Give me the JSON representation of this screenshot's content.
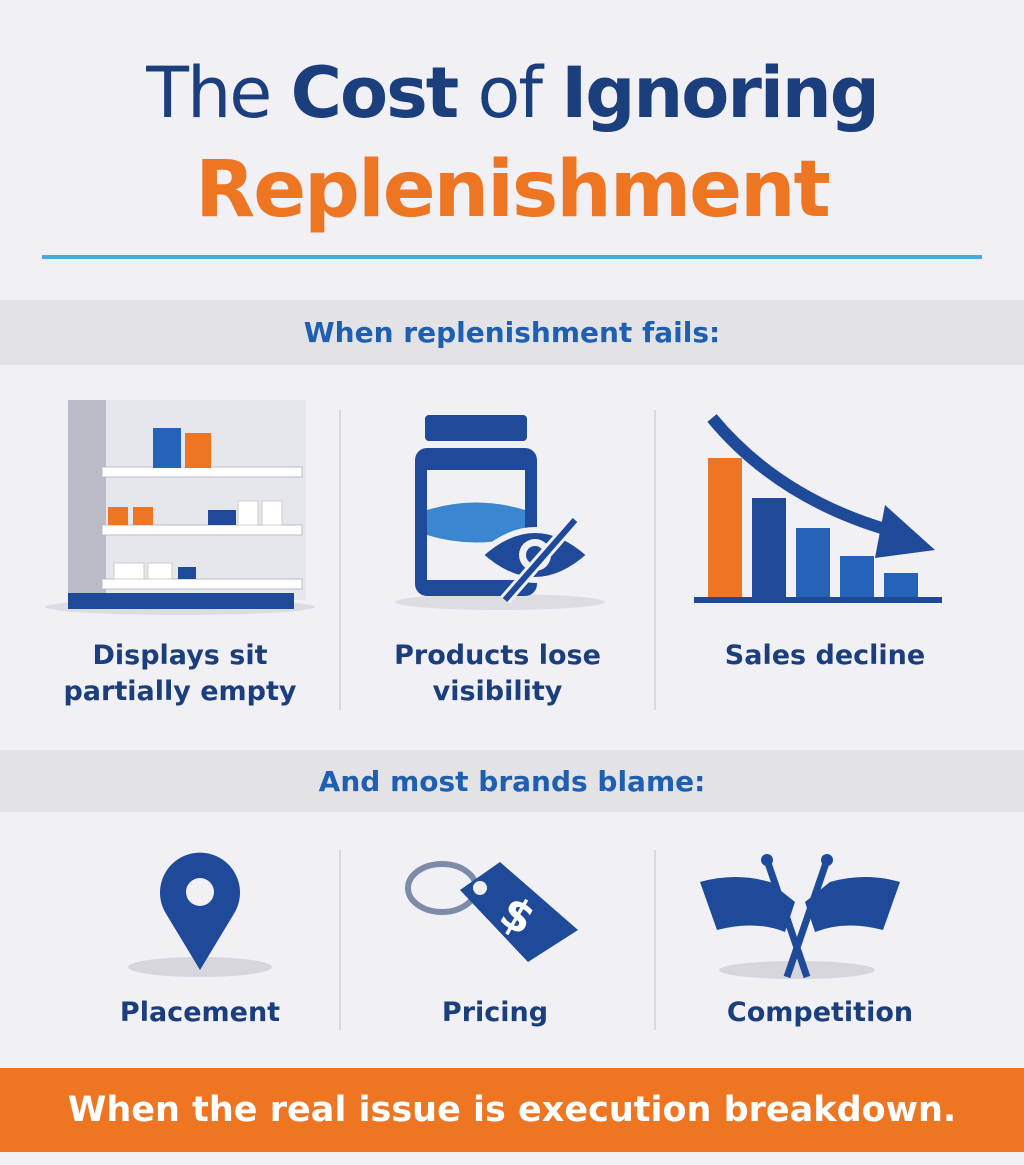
{
  "header": {
    "title_words": [
      "The",
      "Cost",
      "of",
      "Ignoring"
    ],
    "highlight": "Replenishment"
  },
  "sections": [
    {
      "heading": "When replenishment fails:",
      "items": [
        "Displays sit partially empty",
        "Products lose visibility",
        "Sales decline"
      ]
    },
    {
      "heading": "And most brands blame:",
      "items": [
        "Placement",
        "Pricing",
        "Competition"
      ]
    }
  ],
  "footer": "When the real issue is execution breakdown."
}
